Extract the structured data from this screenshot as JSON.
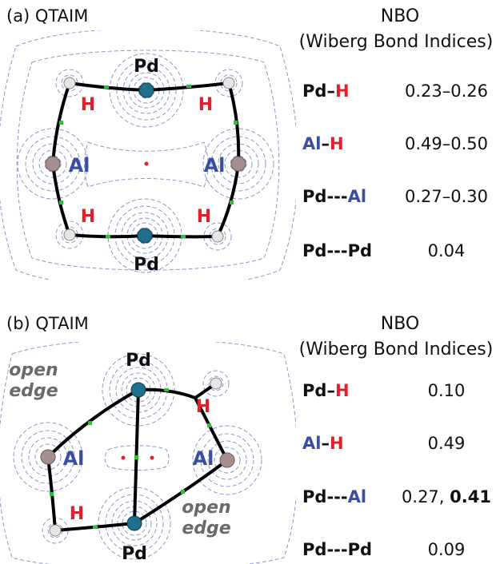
{
  "panel_a": {
    "title": "(a) QTAIM",
    "nbo_title": "NBO",
    "nbo_subtitle": "(Wiberg Bond Indices)",
    "atoms": {
      "pd": "Pd",
      "h": "H",
      "al": "Al"
    },
    "bonds": [
      {
        "a": "Pd",
        "sep": "–",
        "b": "H",
        "value": "0.23–0.26"
      },
      {
        "a": "Al",
        "sep": "–",
        "b": "H",
        "value": "0.49–0.50"
      },
      {
        "a": "Pd",
        "sep": "---",
        "b": "Al",
        "value": "0.27–0.30"
      },
      {
        "a": "Pd",
        "sep": "---",
        "b": "Pd",
        "value": "0.04"
      }
    ]
  },
  "panel_b": {
    "title": "(b) QTAIM",
    "nbo_title": "NBO",
    "nbo_subtitle": "(Wiberg Bond Indices)",
    "atoms": {
      "pd": "Pd",
      "h": "H",
      "al": "Al",
      "open": "open",
      "edge": "edge"
    },
    "bonds": [
      {
        "a": "Pd",
        "sep": "–",
        "b": "H",
        "value": "0.10"
      },
      {
        "a": "Al",
        "sep": "–",
        "b": "H",
        "value": "0.49"
      },
      {
        "a": "Pd",
        "sep": "---",
        "b": "Al",
        "value": "0.27, ",
        "value_bold": "0.41"
      },
      {
        "a": "Pd",
        "sep": "---",
        "b": "Pd",
        "value": "0.09"
      }
    ]
  },
  "colors": {
    "pd_atom": "#1f6e8c",
    "al_atom": "#a58e90",
    "h_atom": "#e6e6e6",
    "h_label": "#e0202a",
    "al_label": "#3a4fa0",
    "contour": "#8f96c8",
    "bcp": "#2fbf3a",
    "rcp": "#e0202a"
  }
}
